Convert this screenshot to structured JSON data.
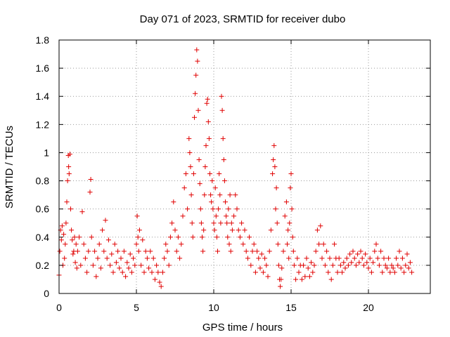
{
  "chart_data": {
    "type": "scatter",
    "title": "Day 071 of 2023, SRMTID for receiver dubo",
    "xlabel": "GPS time / hours",
    "ylabel": "SRMTID / TECUs",
    "xlim": [
      0,
      24
    ],
    "ylim": [
      0,
      1.8
    ],
    "xticks": [
      0,
      5,
      10,
      15,
      20
    ],
    "yticks": [
      0,
      0.2,
      0.4,
      0.6,
      0.8,
      1,
      1.2,
      1.4,
      1.6,
      1.8
    ],
    "xtick_labels": [
      "0",
      "5",
      "10",
      "15",
      "20"
    ],
    "ytick_labels": [
      "0",
      "0.2",
      "0.4",
      "0.6",
      "0.8",
      "1",
      "1.2",
      "1.4",
      "1.6",
      "1.8"
    ],
    "grid": true,
    "marker": "+",
    "color": "#e00000",
    "series": [
      {
        "name": "SRMTID",
        "points": [
          [
            0.0,
            0.13
          ],
          [
            0.05,
            0.3
          ],
          [
            0.1,
            0.45
          ],
          [
            0.15,
            0.38
          ],
          [
            0.2,
            0.48
          ],
          [
            0.25,
            0.2
          ],
          [
            0.3,
            0.42
          ],
          [
            0.35,
            0.25
          ],
          [
            0.4,
            0.35
          ],
          [
            0.45,
            0.5
          ],
          [
            0.5,
            0.65
          ],
          [
            0.55,
            0.8
          ],
          [
            0.6,
            0.98
          ],
          [
            0.62,
            0.9
          ],
          [
            0.65,
            0.85
          ],
          [
            0.7,
            0.99
          ],
          [
            0.75,
            0.6
          ],
          [
            0.8,
            0.45
          ],
          [
            0.85,
            0.38
          ],
          [
            0.9,
            0.28
          ],
          [
            0.95,
            0.3
          ],
          [
            1.0,
            0.4
          ],
          [
            1.05,
            0.22
          ],
          [
            1.1,
            0.35
          ],
          [
            1.15,
            0.18
          ],
          [
            1.2,
            0.3
          ],
          [
            1.3,
            0.4
          ],
          [
            1.4,
            0.2
          ],
          [
            1.5,
            0.58
          ],
          [
            1.6,
            0.35
          ],
          [
            1.7,
            0.25
          ],
          [
            1.8,
            0.15
          ],
          [
            1.9,
            0.3
          ],
          [
            2.0,
            0.72
          ],
          [
            2.05,
            0.81
          ],
          [
            2.1,
            0.4
          ],
          [
            2.2,
            0.2
          ],
          [
            2.3,
            0.3
          ],
          [
            2.4,
            0.12
          ],
          [
            2.5,
            0.25
          ],
          [
            2.6,
            0.35
          ],
          [
            2.7,
            0.18
          ],
          [
            2.8,
            0.45
          ],
          [
            2.9,
            0.3
          ],
          [
            3.0,
            0.52
          ],
          [
            3.1,
            0.25
          ],
          [
            3.2,
            0.38
          ],
          [
            3.3,
            0.2
          ],
          [
            3.4,
            0.28
          ],
          [
            3.5,
            0.15
          ],
          [
            3.6,
            0.35
          ],
          [
            3.7,
            0.22
          ],
          [
            3.8,
            0.3
          ],
          [
            3.9,
            0.18
          ],
          [
            4.0,
            0.25
          ],
          [
            4.1,
            0.15
          ],
          [
            4.2,
            0.3
          ],
          [
            4.3,
            0.12
          ],
          [
            4.4,
            0.22
          ],
          [
            4.5,
            0.18
          ],
          [
            4.6,
            0.28
          ],
          [
            4.7,
            0.15
          ],
          [
            4.8,
            0.25
          ],
          [
            4.9,
            0.2
          ],
          [
            5.0,
            0.35
          ],
          [
            5.05,
            0.55
          ],
          [
            5.1,
            0.4
          ],
          [
            5.15,
            0.3
          ],
          [
            5.2,
            0.45
          ],
          [
            5.3,
            0.2
          ],
          [
            5.4,
            0.38
          ],
          [
            5.5,
            0.15
          ],
          [
            5.6,
            0.3
          ],
          [
            5.7,
            0.25
          ],
          [
            5.8,
            0.18
          ],
          [
            5.9,
            0.3
          ],
          [
            6.0,
            0.15
          ],
          [
            6.1,
            0.25
          ],
          [
            6.2,
            0.1
          ],
          [
            6.3,
            0.2
          ],
          [
            6.4,
            0.15
          ],
          [
            6.5,
            0.08
          ],
          [
            6.6,
            0.05
          ],
          [
            6.7,
            0.15
          ],
          [
            6.8,
            0.25
          ],
          [
            6.9,
            0.35
          ],
          [
            7.0,
            0.3
          ],
          [
            7.1,
            0.2
          ],
          [
            7.2,
            0.4
          ],
          [
            7.3,
            0.5
          ],
          [
            7.4,
            0.65
          ],
          [
            7.5,
            0.45
          ],
          [
            7.6,
            0.3
          ],
          [
            7.7,
            0.4
          ],
          [
            7.8,
            0.25
          ],
          [
            7.9,
            0.35
          ],
          [
            8.0,
            0.55
          ],
          [
            8.1,
            0.75
          ],
          [
            8.2,
            0.85
          ],
          [
            8.3,
            0.6
          ],
          [
            8.4,
            1.1
          ],
          [
            8.45,
            1.0
          ],
          [
            8.5,
            0.9
          ],
          [
            8.55,
            0.7
          ],
          [
            8.6,
            0.5
          ],
          [
            8.65,
            0.4
          ],
          [
            8.7,
            0.85
          ],
          [
            8.75,
            1.25
          ],
          [
            8.8,
            1.42
          ],
          [
            8.85,
            1.55
          ],
          [
            8.9,
            1.73
          ],
          [
            8.95,
            1.65
          ],
          [
            9.0,
            1.3
          ],
          [
            9.05,
            0.95
          ],
          [
            9.1,
            0.78
          ],
          [
            9.15,
            0.6
          ],
          [
            9.2,
            0.5
          ],
          [
            9.25,
            0.4
          ],
          [
            9.3,
            0.3
          ],
          [
            9.35,
            0.45
          ],
          [
            9.4,
            0.7
          ],
          [
            9.45,
            0.9
          ],
          [
            9.5,
            1.05
          ],
          [
            9.55,
            1.35
          ],
          [
            9.6,
            1.38
          ],
          [
            9.65,
            1.22
          ],
          [
            9.7,
            1.1
          ],
          [
            9.75,
            0.85
          ],
          [
            9.8,
            0.7
          ],
          [
            9.85,
            0.65
          ],
          [
            9.9,
            0.8
          ],
          [
            9.95,
            0.6
          ],
          [
            10.0,
            0.5
          ],
          [
            10.05,
            0.45
          ],
          [
            10.1,
            0.75
          ],
          [
            10.15,
            0.55
          ],
          [
            10.2,
            0.4
          ],
          [
            10.25,
            0.3
          ],
          [
            10.3,
            0.6
          ],
          [
            10.35,
            0.85
          ],
          [
            10.4,
            0.7
          ],
          [
            10.45,
            0.5
          ],
          [
            10.5,
            1.4
          ],
          [
            10.55,
            1.3
          ],
          [
            10.6,
            1.1
          ],
          [
            10.65,
            0.95
          ],
          [
            10.7,
            0.8
          ],
          [
            10.75,
            0.65
          ],
          [
            10.8,
            0.55
          ],
          [
            10.85,
            0.5
          ],
          [
            10.9,
            0.4
          ],
          [
            10.95,
            0.6
          ],
          [
            11.0,
            0.35
          ],
          [
            11.05,
            0.7
          ],
          [
            11.1,
            0.3
          ],
          [
            11.15,
            0.5
          ],
          [
            11.2,
            0.45
          ],
          [
            11.3,
            0.55
          ],
          [
            11.4,
            0.7
          ],
          [
            11.5,
            0.6
          ],
          [
            11.6,
            0.45
          ],
          [
            11.7,
            0.4
          ],
          [
            11.8,
            0.5
          ],
          [
            11.9,
            0.35
          ],
          [
            12.0,
            0.45
          ],
          [
            12.1,
            0.3
          ],
          [
            12.2,
            0.25
          ],
          [
            12.3,
            0.4
          ],
          [
            12.4,
            0.2
          ],
          [
            12.5,
            0.3
          ],
          [
            12.6,
            0.35
          ],
          [
            12.7,
            0.15
          ],
          [
            12.8,
            0.3
          ],
          [
            12.9,
            0.25
          ],
          [
            13.0,
            0.18
          ],
          [
            13.1,
            0.28
          ],
          [
            13.2,
            0.15
          ],
          [
            13.3,
            0.25
          ],
          [
            13.4,
            0.2
          ],
          [
            13.5,
            0.12
          ],
          [
            13.6,
            0.3
          ],
          [
            13.7,
            0.45
          ],
          [
            13.8,
            0.85
          ],
          [
            13.85,
            0.95
          ],
          [
            13.9,
            1.05
          ],
          [
            13.95,
            0.9
          ],
          [
            14.0,
            0.6
          ],
          [
            14.05,
            0.75
          ],
          [
            14.1,
            0.5
          ],
          [
            14.15,
            0.35
          ],
          [
            14.2,
            0.2
          ],
          [
            14.25,
            0.1
          ],
          [
            14.3,
            0.05
          ],
          [
            14.35,
            0.1
          ],
          [
            14.4,
            0.18
          ],
          [
            14.5,
            0.3
          ],
          [
            14.6,
            0.55
          ],
          [
            14.7,
            0.65
          ],
          [
            14.75,
            0.35
          ],
          [
            14.8,
            0.45
          ],
          [
            14.85,
            0.25
          ],
          [
            14.9,
            0.5
          ],
          [
            14.95,
            0.75
          ],
          [
            15.0,
            0.85
          ],
          [
            15.05,
            0.6
          ],
          [
            15.1,
            0.4
          ],
          [
            15.15,
            0.3
          ],
          [
            15.2,
            0.2
          ],
          [
            15.3,
            0.1
          ],
          [
            15.4,
            0.25
          ],
          [
            15.5,
            0.15
          ],
          [
            15.6,
            0.2
          ],
          [
            15.7,
            0.1
          ],
          [
            15.8,
            0.2
          ],
          [
            15.9,
            0.12
          ],
          [
            16.0,
            0.25
          ],
          [
            16.1,
            0.18
          ],
          [
            16.2,
            0.12
          ],
          [
            16.3,
            0.22
          ],
          [
            16.4,
            0.15
          ],
          [
            16.5,
            0.2
          ],
          [
            16.6,
            0.3
          ],
          [
            16.7,
            0.45
          ],
          [
            16.8,
            0.35
          ],
          [
            16.9,
            0.48
          ],
          [
            17.0,
            0.25
          ],
          [
            17.1,
            0.35
          ],
          [
            17.2,
            0.2
          ],
          [
            17.3,
            0.3
          ],
          [
            17.4,
            0.15
          ],
          [
            17.5,
            0.25
          ],
          [
            17.6,
            0.1
          ],
          [
            17.7,
            0.2
          ],
          [
            17.8,
            0.35
          ],
          [
            17.9,
            0.25
          ],
          [
            18.0,
            0.15
          ],
          [
            18.1,
            0.25
          ],
          [
            18.2,
            0.2
          ],
          [
            18.3,
            0.15
          ],
          [
            18.4,
            0.22
          ],
          [
            18.5,
            0.18
          ],
          [
            18.6,
            0.25
          ],
          [
            18.7,
            0.2
          ],
          [
            18.8,
            0.28
          ],
          [
            18.9,
            0.22
          ],
          [
            19.0,
            0.3
          ],
          [
            19.1,
            0.25
          ],
          [
            19.2,
            0.2
          ],
          [
            19.3,
            0.28
          ],
          [
            19.4,
            0.22
          ],
          [
            19.5,
            0.3
          ],
          [
            19.6,
            0.25
          ],
          [
            19.7,
            0.2
          ],
          [
            19.8,
            0.28
          ],
          [
            19.9,
            0.22
          ],
          [
            20.0,
            0.18
          ],
          [
            20.1,
            0.25
          ],
          [
            20.2,
            0.15
          ],
          [
            20.3,
            0.22
          ],
          [
            20.4,
            0.3
          ],
          [
            20.5,
            0.35
          ],
          [
            20.6,
            0.25
          ],
          [
            20.7,
            0.2
          ],
          [
            20.8,
            0.3
          ],
          [
            20.9,
            0.15
          ],
          [
            21.0,
            0.25
          ],
          [
            21.1,
            0.2
          ],
          [
            21.2,
            0.18
          ],
          [
            21.3,
            0.25
          ],
          [
            21.4,
            0.15
          ],
          [
            21.5,
            0.2
          ],
          [
            21.6,
            0.18
          ],
          [
            21.7,
            0.15
          ],
          [
            21.8,
            0.25
          ],
          [
            21.9,
            0.2
          ],
          [
            22.0,
            0.3
          ],
          [
            22.1,
            0.18
          ],
          [
            22.2,
            0.25
          ],
          [
            22.3,
            0.15
          ],
          [
            22.4,
            0.2
          ],
          [
            22.5,
            0.28
          ],
          [
            22.6,
            0.18
          ],
          [
            22.7,
            0.22
          ],
          [
            22.8,
            0.15
          ]
        ]
      }
    ]
  }
}
